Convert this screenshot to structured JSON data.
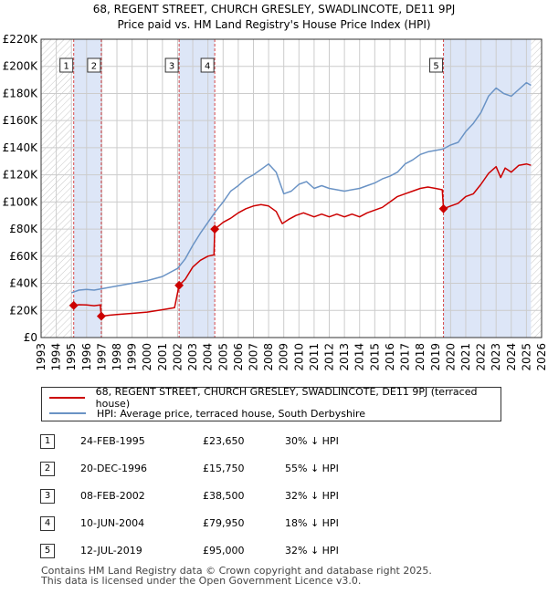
{
  "title": {
    "line1": "68, REGENT STREET, CHURCH GRESLEY, SWADLINCOTE, DE11 9PJ",
    "line2": "Price paid vs. HM Land Registry's House Price Index (HPI)"
  },
  "colors": {
    "property": "#cc0000",
    "hpi": "#6a93c5",
    "shade": "#dde6f7",
    "grid": "#cccccc",
    "marker_line": "#cc0000"
  },
  "chart_data": {
    "type": "line",
    "xlim": [
      1993,
      2026
    ],
    "ylim": [
      0,
      220000
    ],
    "x_ticks": [
      "1993",
      "1994",
      "1995",
      "1996",
      "1997",
      "1998",
      "1999",
      "2000",
      "2001",
      "2002",
      "2003",
      "2004",
      "2005",
      "2006",
      "2007",
      "2008",
      "2009",
      "2010",
      "2011",
      "2012",
      "2013",
      "2014",
      "2015",
      "2016",
      "2017",
      "2018",
      "2019",
      "2020",
      "2021",
      "2022",
      "2023",
      "2024",
      "2025",
      "2026"
    ],
    "y_ticks": [
      {
        "value": 0,
        "label": "£0"
      },
      {
        "value": 20000,
        "label": "£20K"
      },
      {
        "value": 40000,
        "label": "£40K"
      },
      {
        "value": 60000,
        "label": "£60K"
      },
      {
        "value": 80000,
        "label": "£80K"
      },
      {
        "value": 100000,
        "label": "£100K"
      },
      {
        "value": 120000,
        "label": "£120K"
      },
      {
        "value": 140000,
        "label": "£140K"
      },
      {
        "value": 160000,
        "label": "£160K"
      },
      {
        "value": 180000,
        "label": "£180K"
      },
      {
        "value": 200000,
        "label": "£200K"
      },
      {
        "value": 220000,
        "label": "£220K"
      }
    ],
    "hatch_before": 1995.0,
    "hatch_after": 2025.3,
    "shaded_ranges": [
      [
        1995.15,
        1996.97
      ],
      [
        2002.1,
        2004.45
      ],
      [
        2019.53,
        2025.3
      ]
    ],
    "series": [
      {
        "name": "68, REGENT STREET, CHURCH GRESLEY, SWADLINCOTE, DE11 9PJ (terraced house)",
        "color": "#cc0000",
        "points": [
          [
            1995.15,
            23650
          ],
          [
            1995.5,
            24200
          ],
          [
            1996.0,
            24000
          ],
          [
            1996.5,
            23500
          ],
          [
            1996.9,
            24000
          ],
          [
            1996.97,
            15750
          ],
          [
            1997.5,
            16500
          ],
          [
            1998.0,
            17000
          ],
          [
            1999.0,
            17800
          ],
          [
            2000.0,
            18800
          ],
          [
            2001.0,
            20500
          ],
          [
            2001.8,
            22000
          ],
          [
            2002.1,
            38500
          ],
          [
            2002.5,
            43000
          ],
          [
            2003.0,
            52000
          ],
          [
            2003.5,
            57000
          ],
          [
            2004.0,
            60000
          ],
          [
            2004.4,
            61000
          ],
          [
            2004.45,
            79950
          ],
          [
            2005.0,
            85000
          ],
          [
            2005.5,
            88000
          ],
          [
            2006.0,
            92000
          ],
          [
            2006.5,
            95000
          ],
          [
            2007.0,
            97000
          ],
          [
            2007.5,
            98000
          ],
          [
            2008.0,
            97000
          ],
          [
            2008.5,
            93000
          ],
          [
            2008.9,
            84000
          ],
          [
            2009.3,
            87000
          ],
          [
            2009.8,
            90000
          ],
          [
            2010.3,
            92000
          ],
          [
            2011.0,
            89000
          ],
          [
            2011.5,
            91000
          ],
          [
            2012.0,
            89000
          ],
          [
            2012.5,
            91000
          ],
          [
            2013.0,
            89000
          ],
          [
            2013.5,
            91000
          ],
          [
            2014.0,
            89000
          ],
          [
            2014.5,
            92000
          ],
          [
            2015.0,
            94000
          ],
          [
            2015.5,
            96000
          ],
          [
            2016.0,
            100000
          ],
          [
            2016.5,
            104000
          ],
          [
            2017.0,
            106000
          ],
          [
            2017.5,
            108000
          ],
          [
            2018.0,
            110000
          ],
          [
            2018.5,
            111000
          ],
          [
            2019.0,
            110000
          ],
          [
            2019.45,
            109000
          ],
          [
            2019.53,
            95000
          ],
          [
            2020.0,
            97000
          ],
          [
            2020.5,
            99000
          ],
          [
            2021.0,
            104000
          ],
          [
            2021.5,
            106000
          ],
          [
            2022.0,
            113000
          ],
          [
            2022.5,
            121000
          ],
          [
            2023.0,
            126000
          ],
          [
            2023.3,
            118000
          ],
          [
            2023.6,
            125000
          ],
          [
            2024.0,
            122000
          ],
          [
            2024.5,
            127000
          ],
          [
            2025.0,
            128000
          ],
          [
            2025.3,
            127000
          ]
        ]
      },
      {
        "name": "HPI: Average price, terraced house, South Derbyshire",
        "color": "#6a93c5",
        "points": [
          [
            1995.0,
            33000
          ],
          [
            1995.5,
            35000
          ],
          [
            1996.0,
            35500
          ],
          [
            1996.5,
            35000
          ],
          [
            1997.0,
            36000
          ],
          [
            1998.0,
            38000
          ],
          [
            1999.0,
            40000
          ],
          [
            2000.0,
            42000
          ],
          [
            2001.0,
            45000
          ],
          [
            2002.0,
            51000
          ],
          [
            2002.5,
            58000
          ],
          [
            2003.0,
            68000
          ],
          [
            2003.5,
            77000
          ],
          [
            2004.0,
            85000
          ],
          [
            2004.5,
            93000
          ],
          [
            2005.0,
            100000
          ],
          [
            2005.5,
            108000
          ],
          [
            2006.0,
            112000
          ],
          [
            2006.5,
            117000
          ],
          [
            2007.0,
            120000
          ],
          [
            2007.5,
            124000
          ],
          [
            2008.0,
            128000
          ],
          [
            2008.5,
            122000
          ],
          [
            2009.0,
            106000
          ],
          [
            2009.5,
            108000
          ],
          [
            2010.0,
            113000
          ],
          [
            2010.5,
            115000
          ],
          [
            2011.0,
            110000
          ],
          [
            2011.5,
            112000
          ],
          [
            2012.0,
            110000
          ],
          [
            2013.0,
            108000
          ],
          [
            2014.0,
            110000
          ],
          [
            2014.5,
            112000
          ],
          [
            2015.0,
            114000
          ],
          [
            2015.5,
            117000
          ],
          [
            2016.0,
            119000
          ],
          [
            2016.5,
            122000
          ],
          [
            2017.0,
            128000
          ],
          [
            2017.5,
            131000
          ],
          [
            2018.0,
            135000
          ],
          [
            2018.5,
            137000
          ],
          [
            2019.0,
            138000
          ],
          [
            2019.5,
            139000
          ],
          [
            2020.0,
            142000
          ],
          [
            2020.5,
            144000
          ],
          [
            2021.0,
            152000
          ],
          [
            2021.5,
            158000
          ],
          [
            2022.0,
            166000
          ],
          [
            2022.5,
            178000
          ],
          [
            2023.0,
            184000
          ],
          [
            2023.5,
            180000
          ],
          [
            2024.0,
            178000
          ],
          [
            2024.5,
            183000
          ],
          [
            2025.0,
            188000
          ],
          [
            2025.3,
            186000
          ]
        ]
      }
    ],
    "sales": [
      {
        "num": "1",
        "x": 1995.15,
        "value": 23650
      },
      {
        "num": "2",
        "x": 1996.97,
        "value": 15750
      },
      {
        "num": "3",
        "x": 2002.1,
        "value": 38500
      },
      {
        "num": "4",
        "x": 2004.45,
        "value": 79950
      },
      {
        "num": "5",
        "x": 2019.53,
        "value": 95000
      }
    ]
  },
  "legend": {
    "property_label": "68, REGENT STREET, CHURCH GRESLEY, SWADLINCOTE, DE11 9PJ (terraced house)",
    "hpi_label": "HPI: Average price, terraced house, South Derbyshire"
  },
  "transactions": [
    {
      "num": "1",
      "date": "24-FEB-1995",
      "price": "£23,650",
      "hpi": "30% ↓ HPI"
    },
    {
      "num": "2",
      "date": "20-DEC-1996",
      "price": "£15,750",
      "hpi": "55% ↓ HPI"
    },
    {
      "num": "3",
      "date": "08-FEB-2002",
      "price": "£38,500",
      "hpi": "32% ↓ HPI"
    },
    {
      "num": "4",
      "date": "10-JUN-2004",
      "price": "£79,950",
      "hpi": "18% ↓ HPI"
    },
    {
      "num": "5",
      "date": "12-JUL-2019",
      "price": "£95,000",
      "hpi": "32% ↓ HPI"
    }
  ],
  "footer": {
    "line1": "Contains HM Land Registry data © Crown copyright and database right 2025.",
    "line2": "This data is licensed under the Open Government Licence v3.0."
  }
}
